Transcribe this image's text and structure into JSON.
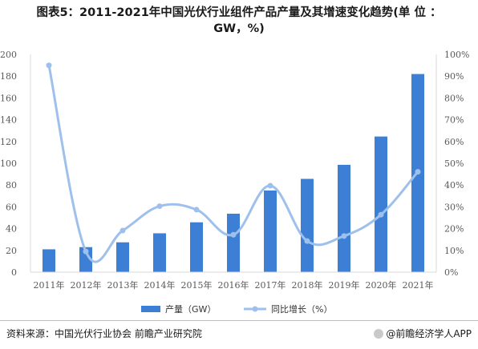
{
  "title_line1": "图表5：2011-2021年中国光伏行业组件产品产量及其增速变化趋势(单 位 ：",
  "title_line2": "GW，%)",
  "source": "资料来源：中国光伏行业协会 前瞻产业研究院",
  "brand": "@前瞻经济学人APP",
  "colors": {
    "bar": "#3e7fd6",
    "line": "#9ec0ec",
    "axis": "#d9d9d9"
  },
  "chart_data": {
    "type": "bar",
    "categories": [
      "2011年",
      "2012年",
      "2013年",
      "2014年",
      "2015年",
      "2016年",
      "2017年",
      "2018年",
      "2019年",
      "2020年",
      "2021年"
    ],
    "series": [
      {
        "name": "产量（GW）",
        "type": "bar",
        "axis": "left",
        "values": [
          21,
          23,
          27.4,
          35.7,
          45.8,
          53.7,
          75,
          85.7,
          98.6,
          124.6,
          182
        ]
      },
      {
        "name": "同比增长（%）",
        "type": "line",
        "axis": "right",
        "values": [
          95,
          9.5,
          19.1,
          30.3,
          28.7,
          17.2,
          39.7,
          14.3,
          16.6,
          26.4,
          46.1
        ]
      }
    ],
    "ylim_left": [
      0,
      200
    ],
    "yticks_left": [
      "0",
      "20",
      "40",
      "60",
      "80",
      "100",
      "120",
      "140",
      "160",
      "180",
      "200"
    ],
    "ylim_right": [
      0,
      100
    ],
    "yticks_right": [
      "0%",
      "10%",
      "20%",
      "30%",
      "40%",
      "50%",
      "60%",
      "70%",
      "80%",
      "90%",
      "100%"
    ],
    "legend_position": "bottom",
    "grid": false
  }
}
